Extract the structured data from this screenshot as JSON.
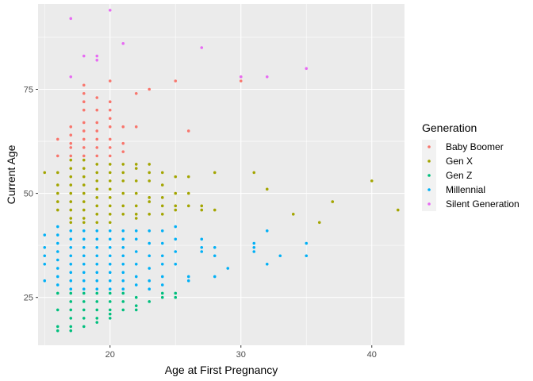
{
  "chart_data": {
    "type": "scatter",
    "xlabel": "Age at First Pregnancy",
    "ylabel": "Current Age",
    "xlim": [
      14.5,
      42.5
    ],
    "ylim": [
      13.5,
      95.5
    ],
    "x_ticks": [
      20,
      30,
      40
    ],
    "y_ticks": [
      25,
      50,
      75
    ],
    "grid": true,
    "legend": {
      "title": "Generation",
      "position": "right"
    },
    "series": [
      {
        "name": "Baby Boomer",
        "color": "#F8766D",
        "points": [
          [
            16,
            63
          ],
          [
            16,
            59
          ],
          [
            17,
            66
          ],
          [
            17,
            64
          ],
          [
            17,
            62
          ],
          [
            17,
            61
          ],
          [
            17,
            59
          ],
          [
            18,
            76
          ],
          [
            18,
            74
          ],
          [
            18,
            72
          ],
          [
            18,
            70
          ],
          [
            18,
            67
          ],
          [
            18,
            65
          ],
          [
            18,
            63
          ],
          [
            18,
            61
          ],
          [
            18,
            59
          ],
          [
            19,
            73
          ],
          [
            19,
            70
          ],
          [
            19,
            67
          ],
          [
            19,
            65
          ],
          [
            19,
            63
          ],
          [
            19,
            61
          ],
          [
            19,
            59
          ],
          [
            20,
            77
          ],
          [
            20,
            72
          ],
          [
            20,
            70
          ],
          [
            20,
            68
          ],
          [
            20,
            66
          ],
          [
            20,
            63
          ],
          [
            20,
            61
          ],
          [
            20,
            59
          ],
          [
            21,
            66
          ],
          [
            21,
            62
          ],
          [
            21,
            60
          ],
          [
            22,
            74
          ],
          [
            22,
            66
          ],
          [
            23,
            75
          ],
          [
            25,
            77
          ],
          [
            26,
            65
          ],
          [
            30,
            78
          ],
          [
            30,
            77
          ]
        ]
      },
      {
        "name": "Gen X",
        "color": "#A3A500",
        "points": [
          [
            15,
            55
          ],
          [
            16,
            55
          ],
          [
            16,
            52
          ],
          [
            16,
            50
          ],
          [
            16,
            48
          ],
          [
            16,
            46
          ],
          [
            17,
            58
          ],
          [
            17,
            56
          ],
          [
            17,
            54
          ],
          [
            17,
            52
          ],
          [
            17,
            50
          ],
          [
            17,
            48
          ],
          [
            17,
            46
          ],
          [
            17,
            44
          ],
          [
            17,
            43
          ],
          [
            18,
            58
          ],
          [
            18,
            56
          ],
          [
            18,
            54
          ],
          [
            18,
            52
          ],
          [
            18,
            50
          ],
          [
            18,
            48
          ],
          [
            18,
            46
          ],
          [
            18,
            44
          ],
          [
            18,
            43
          ],
          [
            19,
            57
          ],
          [
            19,
            55
          ],
          [
            19,
            53
          ],
          [
            19,
            51
          ],
          [
            19,
            49
          ],
          [
            19,
            47
          ],
          [
            19,
            45
          ],
          [
            19,
            43
          ],
          [
            20,
            57
          ],
          [
            20,
            55
          ],
          [
            20,
            53
          ],
          [
            20,
            51
          ],
          [
            20,
            49
          ],
          [
            20,
            47
          ],
          [
            20,
            45
          ],
          [
            20,
            43
          ],
          [
            21,
            57
          ],
          [
            21,
            55
          ],
          [
            21,
            53
          ],
          [
            21,
            50
          ],
          [
            21,
            47
          ],
          [
            21,
            45
          ],
          [
            22,
            57
          ],
          [
            22,
            56
          ],
          [
            22,
            53
          ],
          [
            22,
            50
          ],
          [
            22,
            47
          ],
          [
            22,
            45
          ],
          [
            22,
            44
          ],
          [
            23,
            57
          ],
          [
            23,
            55
          ],
          [
            23,
            53
          ],
          [
            23,
            49
          ],
          [
            23,
            48
          ],
          [
            23,
            45
          ],
          [
            24,
            55
          ],
          [
            24,
            52
          ],
          [
            24,
            49
          ],
          [
            24,
            47
          ],
          [
            24,
            45
          ],
          [
            25,
            54
          ],
          [
            25,
            50
          ],
          [
            25,
            47
          ],
          [
            25,
            46
          ],
          [
            26,
            54
          ],
          [
            26,
            50
          ],
          [
            26,
            47
          ],
          [
            27,
            47
          ],
          [
            27,
            46
          ],
          [
            28,
            46
          ],
          [
            28,
            55
          ],
          [
            31,
            55
          ],
          [
            32,
            51
          ],
          [
            34,
            45
          ],
          [
            36,
            43
          ],
          [
            37,
            48
          ],
          [
            40,
            53
          ],
          [
            42,
            46
          ]
        ]
      },
      {
        "name": "Gen Z",
        "color": "#00BF7D",
        "points": [
          [
            16,
            26
          ],
          [
            16,
            22
          ],
          [
            16,
            18
          ],
          [
            16,
            17
          ],
          [
            17,
            26
          ],
          [
            17,
            24
          ],
          [
            17,
            22
          ],
          [
            17,
            20
          ],
          [
            17,
            18
          ],
          [
            17,
            17
          ],
          [
            18,
            26
          ],
          [
            18,
            24
          ],
          [
            18,
            22
          ],
          [
            18,
            20
          ],
          [
            18,
            18
          ],
          [
            19,
            26
          ],
          [
            19,
            24
          ],
          [
            19,
            22
          ],
          [
            19,
            20
          ],
          [
            19,
            19
          ],
          [
            20,
            26
          ],
          [
            20,
            24
          ],
          [
            20,
            22
          ],
          [
            20,
            21
          ],
          [
            20,
            20
          ],
          [
            21,
            26
          ],
          [
            21,
            24
          ],
          [
            21,
            22
          ],
          [
            22,
            25
          ],
          [
            22,
            23
          ],
          [
            22,
            22
          ],
          [
            23,
            24
          ],
          [
            24,
            26
          ],
          [
            24,
            25
          ],
          [
            25,
            26
          ],
          [
            25,
            25
          ]
        ]
      },
      {
        "name": "Millennial",
        "color": "#00B0F6",
        "points": [
          [
            15,
            40
          ],
          [
            15,
            37
          ],
          [
            15,
            35
          ],
          [
            15,
            33
          ],
          [
            15,
            29
          ],
          [
            16,
            42
          ],
          [
            16,
            40
          ],
          [
            16,
            38
          ],
          [
            16,
            36
          ],
          [
            16,
            34
          ],
          [
            16,
            32
          ],
          [
            16,
            30
          ],
          [
            16,
            28
          ],
          [
            17,
            41
          ],
          [
            17,
            39
          ],
          [
            17,
            37
          ],
          [
            17,
            35
          ],
          [
            17,
            33
          ],
          [
            17,
            31
          ],
          [
            17,
            29
          ],
          [
            17,
            27
          ],
          [
            18,
            41
          ],
          [
            18,
            39
          ],
          [
            18,
            37
          ],
          [
            18,
            35
          ],
          [
            18,
            33
          ],
          [
            18,
            31
          ],
          [
            18,
            29
          ],
          [
            18,
            27
          ],
          [
            19,
            41
          ],
          [
            19,
            39
          ],
          [
            19,
            37
          ],
          [
            19,
            35
          ],
          [
            19,
            33
          ],
          [
            19,
            31
          ],
          [
            19,
            29
          ],
          [
            19,
            27
          ],
          [
            20,
            41
          ],
          [
            20,
            39
          ],
          [
            20,
            37
          ],
          [
            20,
            35
          ],
          [
            20,
            33
          ],
          [
            20,
            31
          ],
          [
            20,
            29
          ],
          [
            20,
            27
          ],
          [
            21,
            41
          ],
          [
            21,
            39
          ],
          [
            21,
            37
          ],
          [
            21,
            35
          ],
          [
            21,
            33
          ],
          [
            21,
            31
          ],
          [
            21,
            29
          ],
          [
            21,
            27
          ],
          [
            22,
            41
          ],
          [
            22,
            39
          ],
          [
            22,
            36
          ],
          [
            22,
            33
          ],
          [
            22,
            30
          ],
          [
            22,
            28
          ],
          [
            23,
            41
          ],
          [
            23,
            38
          ],
          [
            23,
            35
          ],
          [
            23,
            32
          ],
          [
            23,
            29
          ],
          [
            23,
            27
          ],
          [
            24,
            41
          ],
          [
            24,
            38
          ],
          [
            24,
            35
          ],
          [
            24,
            33
          ],
          [
            24,
            30
          ],
          [
            24,
            28
          ],
          [
            25,
            42
          ],
          [
            25,
            39
          ],
          [
            25,
            36
          ],
          [
            25,
            33
          ],
          [
            26,
            30
          ],
          [
            26,
            29
          ],
          [
            27,
            39
          ],
          [
            27,
            37
          ],
          [
            27,
            36
          ],
          [
            28,
            37
          ],
          [
            28,
            35
          ],
          [
            28,
            30
          ],
          [
            29,
            32
          ],
          [
            31,
            38
          ],
          [
            31,
            37
          ],
          [
            31,
            36
          ],
          [
            32,
            41
          ],
          [
            32,
            33
          ],
          [
            33,
            35
          ],
          [
            35,
            38
          ],
          [
            35,
            35
          ]
        ]
      },
      {
        "name": "Silent Generation",
        "color": "#E76BF3",
        "points": [
          [
            17,
            92
          ],
          [
            17,
            78
          ],
          [
            18,
            83
          ],
          [
            19,
            83
          ],
          [
            19,
            82
          ],
          [
            20,
            94
          ],
          [
            21,
            86
          ],
          [
            27,
            85
          ],
          [
            30,
            78
          ],
          [
            32,
            78
          ],
          [
            35,
            80
          ]
        ]
      }
    ]
  }
}
